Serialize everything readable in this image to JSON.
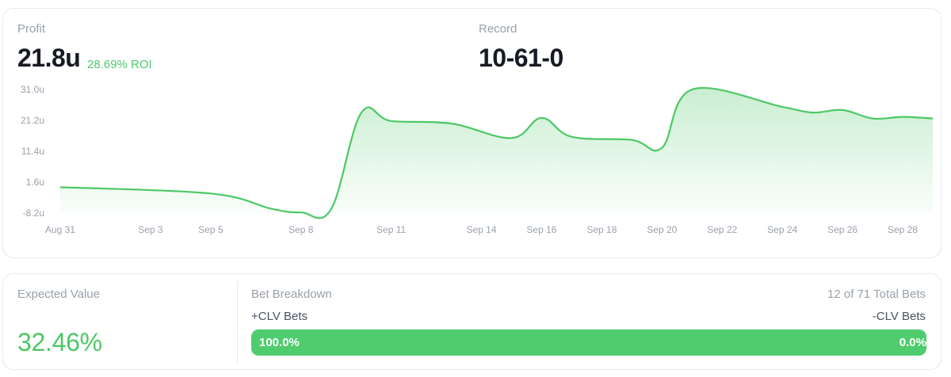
{
  "profit": {
    "label": "Profit",
    "value": "21.8u",
    "roi": "28.69% ROI"
  },
  "record": {
    "label": "Record",
    "value": "10-61-0"
  },
  "expected_value": {
    "label": "Expected Value",
    "value": "32.46%"
  },
  "bet_breakdown": {
    "label": "Bet Breakdown",
    "total": "12 of 71 Total Bets",
    "plus_label": "+CLV Bets",
    "minus_label": "-CLV Bets",
    "plus_pct_text": "100.0%",
    "minus_pct_text": "0.0%",
    "plus_fraction": 1.0
  },
  "colors": {
    "accent_green": "#4fcc6d",
    "line_green": "#4cc865"
  },
  "chart_data": {
    "type": "area",
    "title": "",
    "xlabel": "",
    "ylabel": "",
    "x_ticks": [
      "Aug 31",
      "Sep 3",
      "Sep 5",
      "Sep 8",
      "Sep 11",
      "Sep 14",
      "Sep 16",
      "Sep 18",
      "Sep 20",
      "Sep 22",
      "Sep 24",
      "Sep 26",
      "Sep 28"
    ],
    "y_ticks": [
      "31.0u",
      "21.2u",
      "11.4u",
      "1.6u",
      "-8.2u"
    ],
    "y_tick_values": [
      31.0,
      21.2,
      11.4,
      1.6,
      -8.2
    ],
    "ylim": [
      -8.2,
      31.0
    ],
    "grid": false,
    "series": [
      {
        "values": [
          {
            "x": "Aug 31",
            "y": 0.0
          },
          {
            "x": "Sep 5",
            "y": -2.0
          },
          {
            "x": "Sep 7",
            "y": -6.8
          },
          {
            "x": "Sep 8",
            "y": -8.0
          },
          {
            "x": "Sep 9",
            "y": -7.0
          },
          {
            "x": "Sep 10",
            "y": 23.5
          },
          {
            "x": "Sep 11",
            "y": 21.0
          },
          {
            "x": "Sep 13",
            "y": 20.2
          },
          {
            "x": "Sep 15",
            "y": 15.6
          },
          {
            "x": "Sep 16",
            "y": 22.0
          },
          {
            "x": "Sep 17",
            "y": 16.0
          },
          {
            "x": "Sep 19",
            "y": 15.0
          },
          {
            "x": "Sep 20",
            "y": 12.5
          },
          {
            "x": "Sep 21",
            "y": 31.0
          },
          {
            "x": "Sep 24",
            "y": 25.5
          },
          {
            "x": "Sep 25",
            "y": 23.7
          },
          {
            "x": "Sep 26",
            "y": 24.5
          },
          {
            "x": "Sep 27",
            "y": 21.8
          },
          {
            "x": "Sep 28",
            "y": 22.3
          },
          {
            "x": "Sep 29",
            "y": 21.8
          }
        ]
      }
    ]
  }
}
